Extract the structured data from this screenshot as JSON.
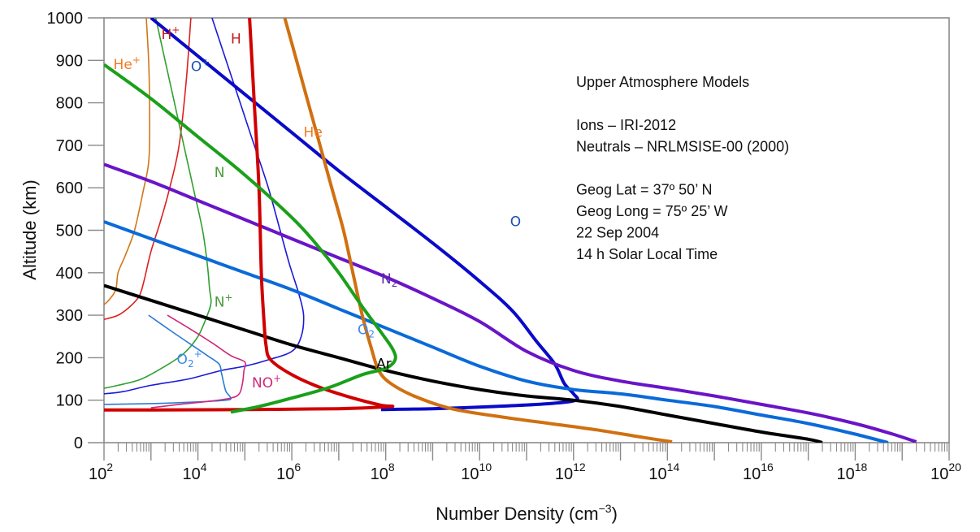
{
  "chart_data": {
    "type": "line",
    "title": "",
    "xlabel": "Number Density (cm",
    "xlabel_sup": "−3",
    "xlabel_close": ")",
    "ylabel": "Altitude (km)",
    "xscale": "log",
    "xlim_exp": [
      2,
      20
    ],
    "ylim": [
      0,
      1000
    ],
    "grid": false,
    "x_ticks": [
      {
        "base": "10",
        "exp": "2"
      },
      {
        "base": "10",
        "exp": "4"
      },
      {
        "base": "10",
        "exp": "6"
      },
      {
        "base": "10",
        "exp": "8"
      },
      {
        "base": "10",
        "exp": "10"
      },
      {
        "base": "10",
        "exp": "12"
      },
      {
        "base": "10",
        "exp": "14"
      },
      {
        "base": "10",
        "exp": "16"
      },
      {
        "base": "10",
        "exp": "18"
      },
      {
        "base": "10",
        "exp": "20"
      }
    ],
    "y_ticks": [
      "0",
      "100",
      "200",
      "300",
      "400",
      "500",
      "600",
      "700",
      "800",
      "900",
      "1000"
    ],
    "annotations": {
      "lines": [
        "Upper Atmosphere Models",
        "",
        "Ions – IRI-2012",
        "Neutrals – NRLMSISE-00 (2000)",
        "",
        "Geog Lat = 37º 50’ N",
        "Geog Long = 75º 25’ W",
        "22 Sep 2004",
        "14 h  Solar Local Time"
      ]
    },
    "series_note": "points are [log10(number density cm^-3), altitude km]",
    "series": [
      {
        "name": "O",
        "label_main": "O",
        "label_sub": "",
        "label_sup": "",
        "kind": "neutral",
        "color": "#0a0ac8",
        "label_color": "#1a4fb0",
        "width": 4,
        "label_at": [
          10.65,
          510
        ],
        "points": [
          [
            3.0,
            1000
          ],
          [
            4.0,
            910
          ],
          [
            5.0,
            820
          ],
          [
            6.0,
            730
          ],
          [
            7.0,
            640
          ],
          [
            8.0,
            555
          ],
          [
            9.0,
            470
          ],
          [
            10.0,
            380
          ],
          [
            10.7,
            310
          ],
          [
            11.2,
            240
          ],
          [
            11.6,
            185
          ],
          [
            11.8,
            140
          ],
          [
            12.0,
            115
          ],
          [
            12.05,
            100
          ],
          [
            11.5,
            92
          ],
          [
            10.3,
            85
          ],
          [
            9.0,
            80
          ],
          [
            7.9,
            78
          ]
        ]
      },
      {
        "name": "N2",
        "label_main": "N",
        "label_sub": "2",
        "label_sup": "",
        "kind": "neutral",
        "color": "#6a14c8",
        "label_color": "#5a2aa8",
        "width": 4,
        "label_at": [
          7.9,
          375
        ],
        "points": [
          [
            2.0,
            655
          ],
          [
            3.0,
            615
          ],
          [
            4.0,
            570
          ],
          [
            5.0,
            525
          ],
          [
            6.0,
            480
          ],
          [
            7.0,
            435
          ],
          [
            8.0,
            390
          ],
          [
            9.0,
            340
          ],
          [
            10.0,
            285
          ],
          [
            11.0,
            215
          ],
          [
            12.0,
            170
          ],
          [
            13.0,
            145
          ],
          [
            14.0,
            128
          ],
          [
            15.0,
            110
          ],
          [
            16.0,
            90
          ],
          [
            17.0,
            70
          ],
          [
            18.0,
            45
          ],
          [
            18.8,
            20
          ],
          [
            19.3,
            2
          ]
        ]
      },
      {
        "name": "O2",
        "label_main": "O",
        "label_sub": "2",
        "label_sup": "",
        "kind": "neutral",
        "color": "#0a6ad8",
        "label_color": "#3a8ae8",
        "width": 4,
        "label_at": [
          7.4,
          255
        ],
        "points": [
          [
            2.0,
            520
          ],
          [
            3.0,
            480
          ],
          [
            4.0,
            440
          ],
          [
            5.0,
            400
          ],
          [
            6.0,
            360
          ],
          [
            7.0,
            315
          ],
          [
            8.0,
            270
          ],
          [
            9.0,
            225
          ],
          [
            10.0,
            180
          ],
          [
            11.0,
            145
          ],
          [
            12.0,
            125
          ],
          [
            13.0,
            115
          ],
          [
            14.0,
            100
          ],
          [
            15.0,
            85
          ],
          [
            16.0,
            65
          ],
          [
            17.0,
            45
          ],
          [
            18.0,
            20
          ],
          [
            18.7,
            0
          ]
        ]
      },
      {
        "name": "Ar",
        "label_main": "Ar",
        "label_sub": "",
        "label_sup": "",
        "kind": "neutral",
        "color": "#000000",
        "label_color": "#000000",
        "width": 4,
        "label_at": [
          7.8,
          175
        ],
        "points": [
          [
            2.0,
            370
          ],
          [
            3.0,
            335
          ],
          [
            4.0,
            300
          ],
          [
            5.0,
            265
          ],
          [
            6.0,
            230
          ],
          [
            7.0,
            200
          ],
          [
            8.0,
            170
          ],
          [
            9.0,
            145
          ],
          [
            10.0,
            125
          ],
          [
            11.0,
            110
          ],
          [
            12.0,
            100
          ],
          [
            13.0,
            85
          ],
          [
            14.0,
            65
          ],
          [
            15.0,
            45
          ],
          [
            16.0,
            25
          ],
          [
            17.0,
            8
          ],
          [
            17.3,
            0
          ]
        ]
      },
      {
        "name": "He",
        "label_main": "He",
        "label_sub": "",
        "label_sup": "",
        "kind": "neutral",
        "color": "#d07010",
        "label_color": "#ee7a20",
        "width": 4,
        "label_at": [
          6.25,
          720
        ],
        "points": [
          [
            5.85,
            1000
          ],
          [
            6.1,
            900
          ],
          [
            6.35,
            800
          ],
          [
            6.6,
            700
          ],
          [
            6.85,
            600
          ],
          [
            7.1,
            500
          ],
          [
            7.3,
            400
          ],
          [
            7.5,
            300
          ],
          [
            7.7,
            220
          ],
          [
            7.85,
            170
          ],
          [
            8.1,
            140
          ],
          [
            8.6,
            110
          ],
          [
            9.4,
            80
          ],
          [
            10.5,
            60
          ],
          [
            11.5,
            45
          ],
          [
            12.5,
            30
          ],
          [
            13.5,
            12
          ],
          [
            14.1,
            2
          ]
        ]
      },
      {
        "name": "H",
        "label_main": "H",
        "label_sub": "",
        "label_sup": "",
        "kind": "neutral",
        "color": "#d00000",
        "label_color": "#c01818",
        "width": 4,
        "label_at": [
          4.7,
          940
        ],
        "points": [
          [
            5.1,
            1000
          ],
          [
            5.2,
            800
          ],
          [
            5.3,
            600
          ],
          [
            5.35,
            400
          ],
          [
            5.4,
            300
          ],
          [
            5.45,
            230
          ],
          [
            5.55,
            195
          ],
          [
            6.0,
            160
          ],
          [
            6.6,
            130
          ],
          [
            7.3,
            105
          ],
          [
            7.9,
            88
          ],
          [
            8.1,
            85
          ],
          [
            7.0,
            80
          ],
          [
            5.0,
            78
          ],
          [
            3.0,
            77
          ],
          [
            2.0,
            77
          ]
        ]
      },
      {
        "name": "N",
        "label_main": "N",
        "label_sub": "",
        "label_sup": "",
        "kind": "neutral",
        "color": "#1aa01a",
        "label_color": "#4a9a3a",
        "width": 4,
        "label_at": [
          4.35,
          625
        ],
        "points": [
          [
            2.0,
            890
          ],
          [
            3.0,
            810
          ],
          [
            4.0,
            720
          ],
          [
            5.0,
            630
          ],
          [
            6.0,
            530
          ],
          [
            6.5,
            470
          ],
          [
            7.0,
            400
          ],
          [
            7.5,
            320
          ],
          [
            7.9,
            260
          ],
          [
            8.15,
            220
          ],
          [
            8.2,
            195
          ],
          [
            8.0,
            175
          ],
          [
            7.5,
            160
          ],
          [
            6.8,
            130
          ],
          [
            6.0,
            105
          ],
          [
            5.3,
            85
          ],
          [
            4.7,
            72
          ]
        ]
      },
      {
        "name": "He+",
        "label_main": "He",
        "label_sub": "",
        "label_sup": "+",
        "kind": "ion",
        "color": "#d07818",
        "label_color": "#ee7a20",
        "width": 1.6,
        "label_at": [
          2.2,
          880
        ],
        "points": [
          [
            2.9,
            1000
          ],
          [
            2.95,
            900
          ],
          [
            2.97,
            800
          ],
          [
            2.97,
            700
          ],
          [
            2.94,
            650
          ],
          [
            2.85,
            600
          ],
          [
            2.65,
            500
          ],
          [
            2.45,
            440
          ],
          [
            2.3,
            400
          ],
          [
            2.25,
            360
          ],
          [
            2.1,
            335
          ],
          [
            2.0,
            325
          ]
        ]
      },
      {
        "name": "H+",
        "label_main": "H",
        "label_sub": "",
        "label_sup": "+",
        "kind": "ion",
        "color": "#dd2020",
        "label_color": "#c01818",
        "width": 1.6,
        "label_at": [
          3.22,
          950
        ],
        "points": [
          [
            3.85,
            1000
          ],
          [
            3.75,
            850
          ],
          [
            3.6,
            700
          ],
          [
            3.4,
            600
          ],
          [
            3.2,
            520
          ],
          [
            3.0,
            450
          ],
          [
            2.85,
            380
          ],
          [
            2.75,
            345
          ],
          [
            2.55,
            320
          ],
          [
            2.3,
            300
          ],
          [
            2.0,
            290
          ]
        ]
      },
      {
        "name": "O+",
        "label_main": "O",
        "label_sub": "",
        "label_sup": "+",
        "kind": "ion",
        "color": "#1a1ad8",
        "label_color": "#1a4fb0",
        "width": 1.6,
        "label_at": [
          3.85,
          875
        ],
        "points": [
          [
            4.3,
            1000
          ],
          [
            4.6,
            900
          ],
          [
            4.9,
            800
          ],
          [
            5.2,
            700
          ],
          [
            5.5,
            600
          ],
          [
            5.75,
            500
          ],
          [
            5.95,
            420
          ],
          [
            6.15,
            350
          ],
          [
            6.25,
            300
          ],
          [
            6.2,
            250
          ],
          [
            6.0,
            215
          ],
          [
            5.5,
            195
          ],
          [
            5.0,
            180
          ],
          [
            4.5,
            170
          ],
          [
            3.8,
            150
          ],
          [
            3.0,
            135
          ],
          [
            2.4,
            120
          ],
          [
            2.0,
            115
          ]
        ]
      },
      {
        "name": "N+",
        "label_main": "N",
        "label_sub": "",
        "label_sup": "+",
        "kind": "ion",
        "color": "#30a030",
        "label_color": "#4a9a3a",
        "width": 1.6,
        "label_at": [
          4.35,
          320
        ],
        "points": [
          [
            3.1,
            1000
          ],
          [
            3.3,
            900
          ],
          [
            3.5,
            800
          ],
          [
            3.7,
            700
          ],
          [
            3.9,
            600
          ],
          [
            4.1,
            500
          ],
          [
            4.2,
            420
          ],
          [
            4.25,
            360
          ],
          [
            4.28,
            330
          ],
          [
            4.2,
            300
          ],
          [
            4.0,
            250
          ],
          [
            3.7,
            210
          ],
          [
            3.3,
            180
          ],
          [
            2.8,
            150
          ],
          [
            2.3,
            135
          ],
          [
            2.0,
            128
          ]
        ]
      },
      {
        "name": "O2+",
        "label_main": "O",
        "label_sub": "2",
        "label_sup": "+",
        "kind": "ion",
        "color": "#2a7ad8",
        "label_color": "#3a8ae8",
        "width": 1.6,
        "label_at": [
          3.55,
          185
        ],
        "points": [
          [
            2.95,
            300
          ],
          [
            3.4,
            265
          ],
          [
            3.8,
            235
          ],
          [
            4.2,
            205
          ],
          [
            4.45,
            185
          ],
          [
            4.5,
            165
          ],
          [
            4.55,
            140
          ],
          [
            4.6,
            120
          ],
          [
            4.7,
            105
          ],
          [
            4.6,
            100
          ],
          [
            4.0,
            96
          ],
          [
            3.0,
            92
          ],
          [
            2.0,
            90
          ]
        ]
      },
      {
        "name": "NO+",
        "label_main": "NO",
        "label_sub": "",
        "label_sup": "+",
        "kind": "ion",
        "color": "#d02878",
        "label_color": "#d02878",
        "width": 1.6,
        "label_at": [
          5.15,
          130
        ],
        "points": [
          [
            3.35,
            300
          ],
          [
            3.8,
            270
          ],
          [
            4.3,
            235
          ],
          [
            4.7,
            205
          ],
          [
            5.0,
            190
          ],
          [
            4.98,
            170
          ],
          [
            4.95,
            140
          ],
          [
            4.88,
            115
          ],
          [
            4.7,
            105
          ],
          [
            4.2,
            97
          ],
          [
            3.6,
            90
          ],
          [
            3.0,
            82
          ]
        ]
      }
    ]
  }
}
